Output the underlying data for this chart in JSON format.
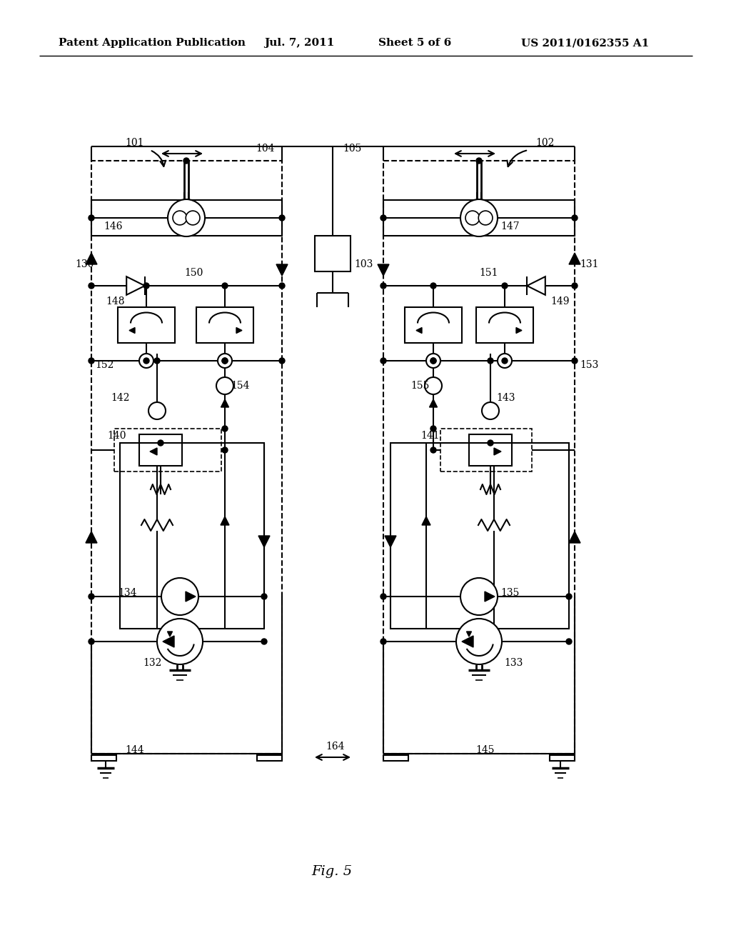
{
  "bg_color": "#ffffff",
  "header_left": "Patent Application Publication",
  "header_mid": "Jul. 7, 2011   Sheet 5 of 6",
  "header_right": "US 2011/0162355 A1",
  "fig_label": "Fig. 5",
  "lw": 1.5
}
